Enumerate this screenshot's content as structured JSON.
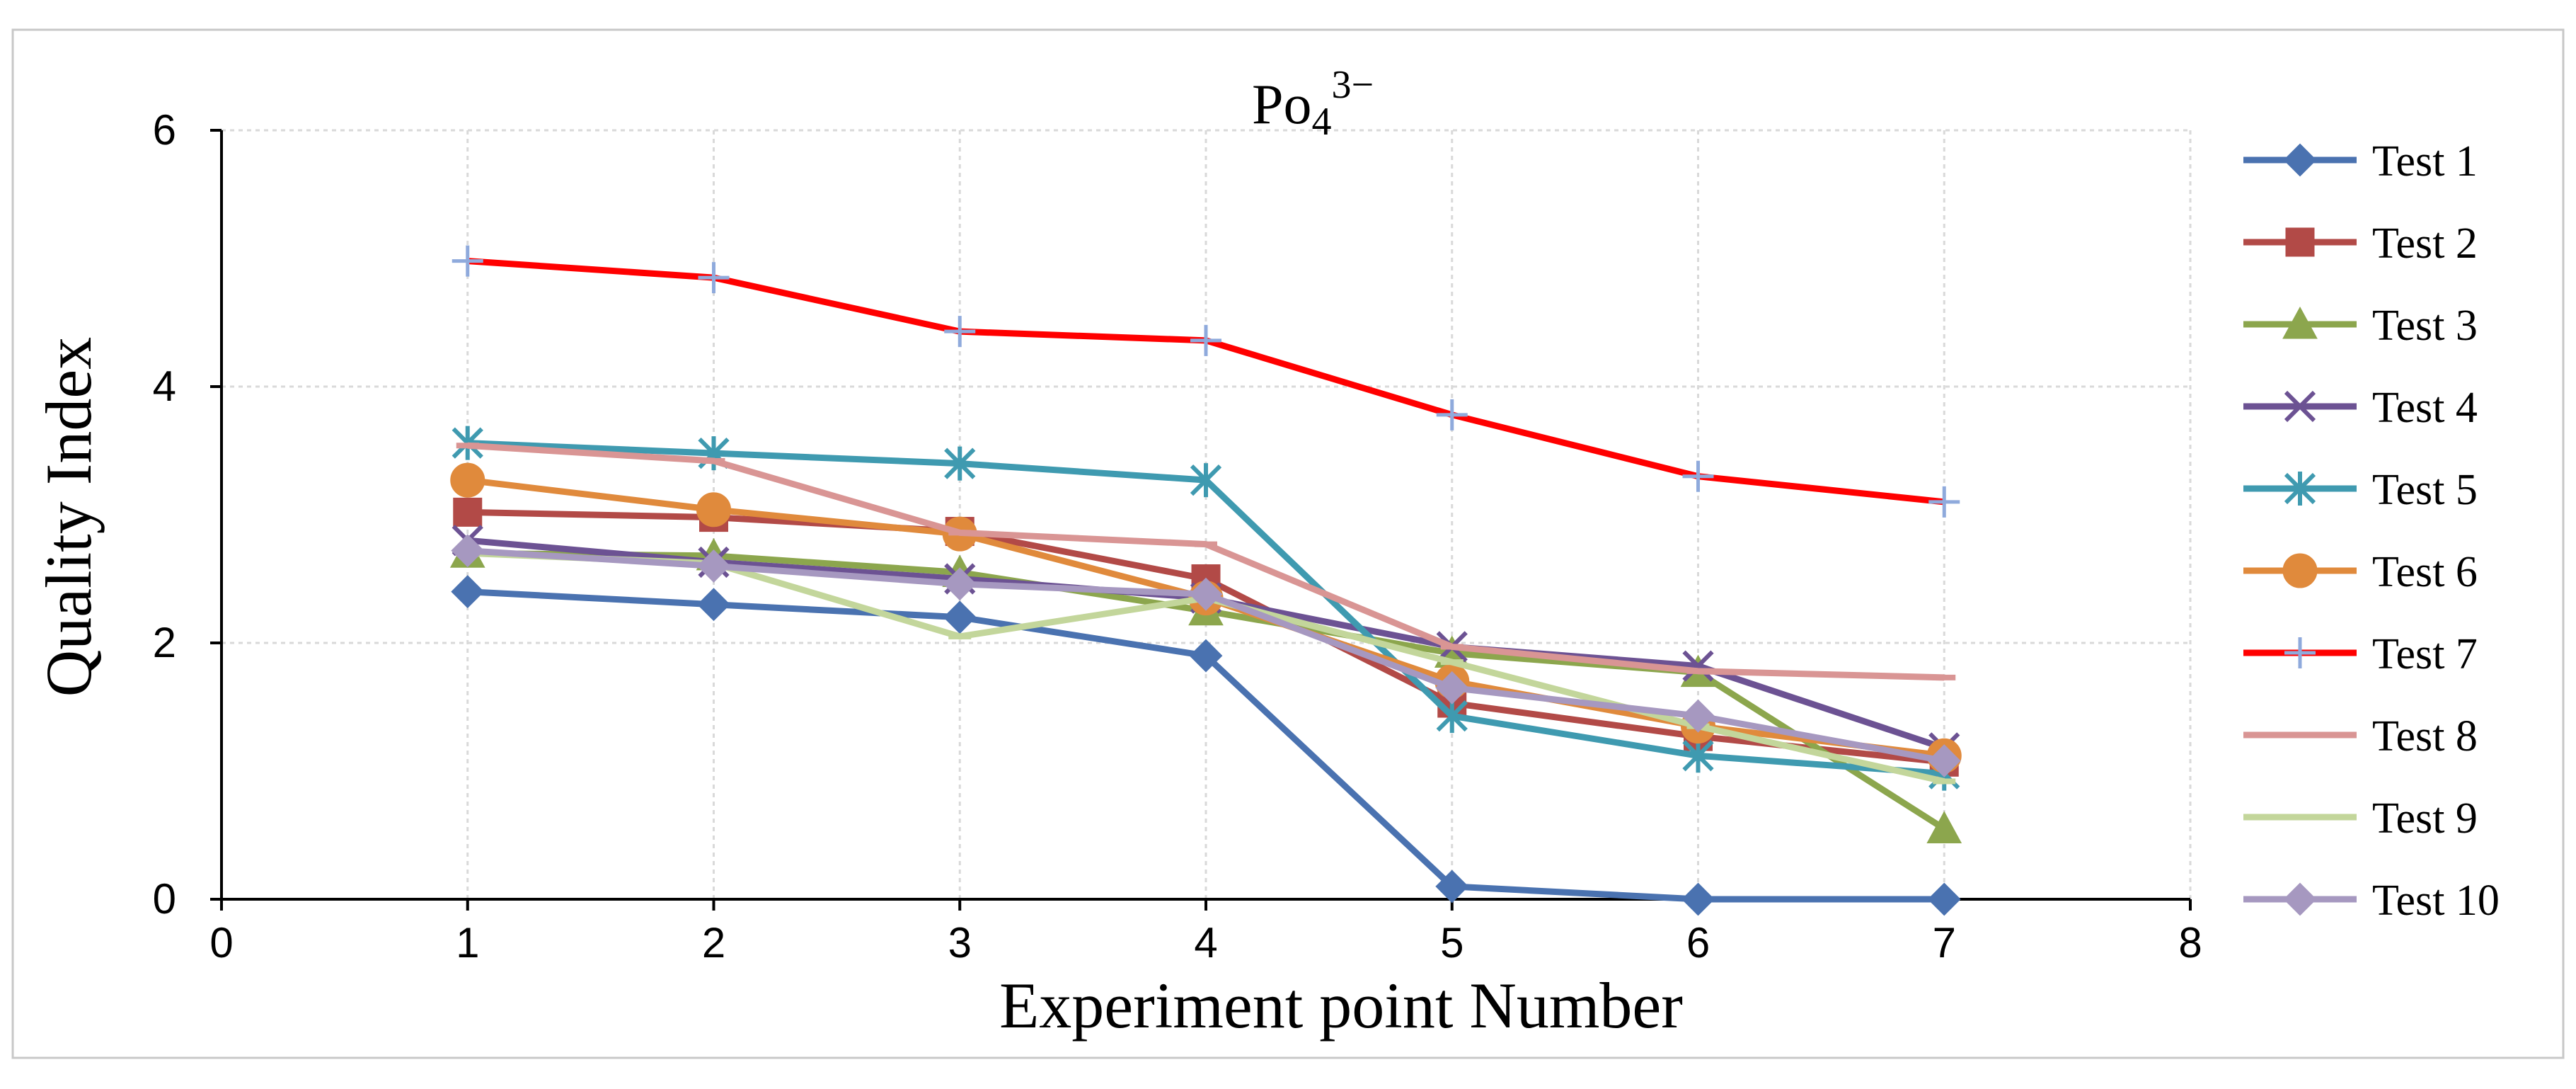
{
  "chart_data": {
    "type": "line",
    "title": "Po",
    "title_sub": "4",
    "title_sup": "3−",
    "xlabel": "Experiment point Number",
    "ylabel": "Quality Index",
    "xlim": [
      0,
      8
    ],
    "ylim": [
      0,
      6
    ],
    "xticks": [
      0,
      1,
      2,
      3,
      4,
      5,
      6,
      7,
      8
    ],
    "yticks": [
      0,
      2,
      4,
      6
    ],
    "grid": true,
    "legend_position": "right",
    "x": [
      1,
      2,
      3,
      4,
      5,
      6,
      7
    ],
    "series": [
      {
        "name": "Test 1",
        "color": "#4a72b0",
        "marker": "diamond",
        "values": [
          2.4,
          2.3,
          2.2,
          1.9,
          0.1,
          0.0,
          0.0
        ]
      },
      {
        "name": "Test 2",
        "color": "#b24a47",
        "marker": "square",
        "values": [
          3.02,
          2.98,
          2.87,
          2.5,
          1.53,
          1.27,
          1.07
        ]
      },
      {
        "name": "Test 3",
        "color": "#8ca64d",
        "marker": "triangle",
        "values": [
          2.7,
          2.68,
          2.55,
          2.25,
          1.92,
          1.77,
          0.55
        ]
      },
      {
        "name": "Test 4",
        "color": "#6c5293",
        "marker": "x",
        "values": [
          2.8,
          2.63,
          2.5,
          2.35,
          1.97,
          1.82,
          1.18
        ]
      },
      {
        "name": "Test 5",
        "color": "#3f9ab0",
        "marker": "star",
        "values": [
          3.56,
          3.48,
          3.4,
          3.27,
          1.43,
          1.12,
          0.98
        ]
      },
      {
        "name": "Test 6",
        "color": "#e08a3c",
        "marker": "circle",
        "values": [
          3.27,
          3.04,
          2.85,
          2.35,
          1.7,
          1.35,
          1.12
        ]
      },
      {
        "name": "Test 7",
        "color": "#ff0000",
        "marker": "plus",
        "values": [
          4.98,
          4.85,
          4.43,
          4.36,
          3.78,
          3.3,
          3.1
        ]
      },
      {
        "name": "Test 8",
        "color": "#d99594",
        "marker": "dash",
        "values": [
          3.54,
          3.42,
          2.86,
          2.77,
          1.97,
          1.78,
          1.73
        ]
      },
      {
        "name": "Test 9",
        "color": "#c3d69b",
        "marker": "dash",
        "values": [
          2.7,
          2.62,
          2.05,
          2.35,
          1.85,
          1.35,
          0.92
        ]
      },
      {
        "name": "Test 10",
        "color": "#a698c0",
        "marker": "diamond",
        "values": [
          2.72,
          2.6,
          2.46,
          2.38,
          1.65,
          1.43,
          1.08
        ]
      }
    ]
  }
}
